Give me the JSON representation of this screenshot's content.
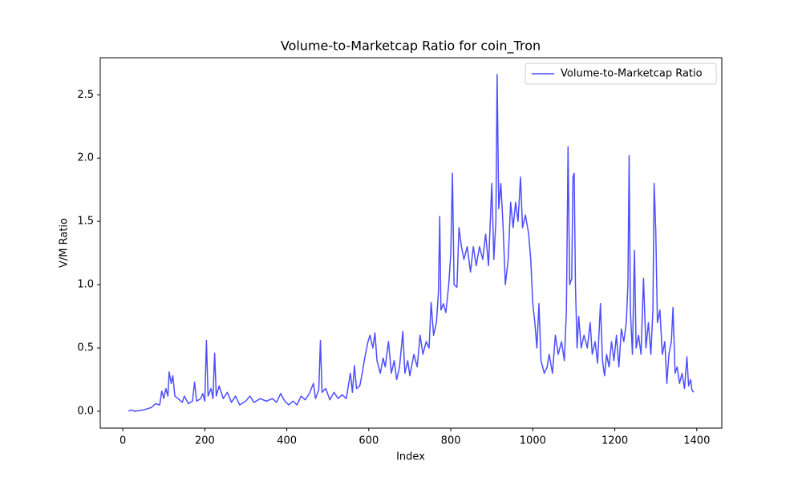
{
  "chart_data": {
    "type": "line",
    "title": "Volume-to-Marketcap Ratio for coin_Tron",
    "xlabel": "Index",
    "ylabel": "V/M Ratio",
    "x": [
      14,
      20,
      30,
      50,
      70,
      80,
      90,
      95,
      100,
      105,
      110,
      113,
      118,
      122,
      127,
      135,
      145,
      150,
      160,
      170,
      175,
      180,
      190,
      195,
      200,
      204,
      208,
      215,
      220,
      224,
      228,
      235,
      245,
      255,
      265,
      275,
      285,
      300,
      310,
      320,
      335,
      350,
      365,
      375,
      385,
      395,
      405,
      415,
      425,
      435,
      445,
      455,
      465,
      470,
      478,
      482,
      486,
      495,
      505,
      515,
      525,
      535,
      545,
      555,
      560,
      565,
      570,
      578,
      585,
      590,
      598,
      603,
      610,
      615,
      620,
      628,
      635,
      640,
      648,
      655,
      662,
      668,
      675,
      683,
      688,
      695,
      700,
      710,
      718,
      725,
      732,
      740,
      747,
      752,
      758,
      765,
      770,
      773,
      776,
      782,
      788,
      795,
      800,
      804,
      808,
      815,
      820,
      826,
      832,
      840,
      848,
      855,
      862,
      870,
      878,
      885,
      892,
      900,
      905,
      910,
      913,
      917,
      922,
      927,
      933,
      940,
      946,
      952,
      958,
      964,
      970,
      975,
      982,
      990,
      995,
      1000,
      1005,
      1010,
      1015,
      1020,
      1028,
      1035,
      1040,
      1048,
      1055,
      1062,
      1070,
      1077,
      1082,
      1086,
      1090,
      1095,
      1098,
      1101,
      1104,
      1108,
      1112,
      1118,
      1125,
      1133,
      1140,
      1145,
      1152,
      1158,
      1165,
      1170,
      1175,
      1180,
      1186,
      1192,
      1198,
      1204,
      1210,
      1216,
      1222,
      1228,
      1232,
      1235,
      1238,
      1243,
      1248,
      1252,
      1258,
      1264,
      1270,
      1276,
      1282,
      1288,
      1293,
      1296,
      1300,
      1304,
      1310,
      1316,
      1322,
      1327,
      1332,
      1338,
      1342,
      1347,
      1352,
      1358,
      1364,
      1370,
      1376,
      1380,
      1385,
      1388,
      1392
    ],
    "series": [
      {
        "name": "Volume-to-Marketcap Ratio",
        "color": "#4d4dff",
        "values": [
          0.0,
          0.01,
          0.0,
          0.01,
          0.03,
          0.06,
          0.05,
          0.16,
          0.1,
          0.18,
          0.12,
          0.31,
          0.22,
          0.28,
          0.12,
          0.1,
          0.07,
          0.12,
          0.06,
          0.08,
          0.23,
          0.08,
          0.1,
          0.14,
          0.08,
          0.56,
          0.12,
          0.18,
          0.1,
          0.46,
          0.12,
          0.2,
          0.1,
          0.15,
          0.07,
          0.12,
          0.05,
          0.08,
          0.12,
          0.07,
          0.1,
          0.08,
          0.1,
          0.07,
          0.14,
          0.08,
          0.05,
          0.08,
          0.05,
          0.12,
          0.09,
          0.14,
          0.22,
          0.1,
          0.17,
          0.56,
          0.15,
          0.18,
          0.09,
          0.15,
          0.1,
          0.13,
          0.1,
          0.3,
          0.15,
          0.36,
          0.18,
          0.2,
          0.32,
          0.42,
          0.55,
          0.6,
          0.5,
          0.62,
          0.4,
          0.3,
          0.42,
          0.35,
          0.55,
          0.3,
          0.4,
          0.25,
          0.35,
          0.63,
          0.3,
          0.4,
          0.28,
          0.45,
          0.35,
          0.6,
          0.45,
          0.55,
          0.5,
          0.86,
          0.6,
          0.7,
          0.95,
          1.54,
          0.8,
          0.85,
          0.78,
          1.0,
          1.25,
          1.88,
          1.0,
          0.98,
          1.45,
          1.3,
          1.2,
          1.3,
          1.1,
          1.3,
          1.15,
          1.3,
          1.2,
          1.4,
          1.15,
          1.8,
          1.2,
          1.5,
          2.66,
          1.6,
          1.8,
          1.5,
          1.0,
          1.2,
          1.65,
          1.45,
          1.65,
          1.5,
          1.85,
          1.45,
          1.55,
          1.4,
          1.2,
          0.85,
          0.7,
          0.5,
          0.85,
          0.4,
          0.3,
          0.35,
          0.45,
          0.3,
          0.6,
          0.45,
          0.55,
          0.4,
          0.8,
          2.09,
          1.0,
          1.05,
          1.85,
          1.88,
          1.0,
          0.5,
          0.75,
          0.5,
          0.6,
          0.5,
          0.7,
          0.45,
          0.55,
          0.38,
          0.85,
          0.4,
          0.28,
          0.45,
          0.35,
          0.55,
          0.4,
          0.6,
          0.35,
          0.65,
          0.55,
          0.7,
          1.0,
          2.02,
          0.8,
          0.45,
          1.27,
          0.5,
          0.6,
          0.45,
          1.05,
          0.5,
          0.7,
          0.45,
          0.8,
          1.8,
          1.42,
          0.7,
          0.8,
          0.45,
          0.55,
          0.22,
          0.45,
          0.55,
          0.82,
          0.3,
          0.35,
          0.22,
          0.3,
          0.18,
          0.43,
          0.2,
          0.25,
          0.17,
          0.15
        ]
      }
    ],
    "xlim": [
      -55,
      1461
    ],
    "ylim": [
      -0.133,
      2.793
    ],
    "xticks": [
      0,
      200,
      400,
      600,
      800,
      1000,
      1200,
      1400
    ],
    "yticks": [
      {
        "value": 0,
        "label": "0.0"
      },
      0.5,
      {
        "value": 1,
        "label": "1.0"
      },
      1.5,
      {
        "value": 2,
        "label": "2.0"
      },
      2.5
    ],
    "legend": "upper right",
    "grid": false
  }
}
